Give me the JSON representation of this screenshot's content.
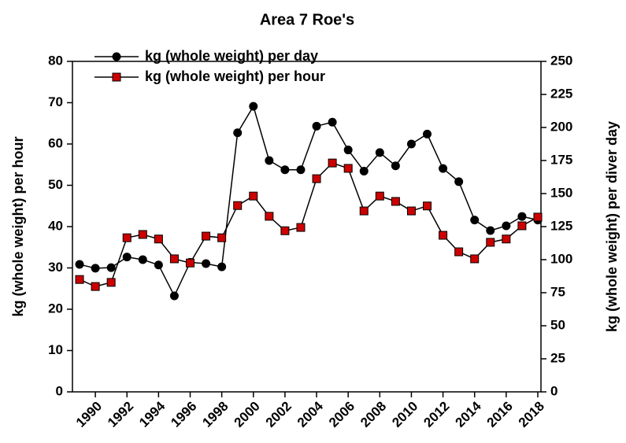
{
  "chart_data": {
    "type": "line",
    "title": "Area 7 Roe's",
    "x": [
      1989,
      1990,
      1991,
      1992,
      1993,
      1994,
      1995,
      1996,
      1997,
      1998,
      1999,
      2000,
      2001,
      2002,
      2003,
      2004,
      2005,
      2006,
      2007,
      2008,
      2009,
      2010,
      2011,
      2012,
      2013,
      2014,
      2015,
      2016,
      2017,
      2018
    ],
    "xlim": [
      1988.55,
      2018.2
    ],
    "xticks": [
      1990,
      1992,
      1994,
      1996,
      1998,
      2000,
      2002,
      2004,
      2006,
      2008,
      2010,
      2012,
      2014,
      2016,
      2018
    ],
    "ylabel": "kg (whole weight) per hour",
    "y2label": "kg (whole weight) per diver day",
    "ylim": [
      0,
      80
    ],
    "yticks": [
      0,
      10,
      20,
      30,
      40,
      50,
      60,
      70,
      80
    ],
    "y2lim": [
      0,
      250
    ],
    "y2ticks": [
      0,
      25,
      50,
      75,
      100,
      125,
      150,
      175,
      200,
      225,
      250
    ],
    "legend": "upper left",
    "series": [
      {
        "name": "kg (whole weight) per day",
        "color": "#000000",
        "marker": "circle",
        "axis": "y2",
        "values": [
          96.4,
          93.5,
          94,
          102,
          100,
          96,
          72.6,
          98,
          97,
          94.6,
          196,
          216,
          175,
          168,
          168,
          201,
          204,
          183,
          167,
          181,
          171,
          187.5,
          195,
          169,
          159,
          130,
          122,
          125.6,
          132.7,
          130
        ]
      },
      {
        "name": "kg (whole weight) per hour",
        "color": "#cc0000",
        "marker": "square",
        "values": [
          27.2,
          25.5,
          26.5,
          37.3,
          38.1,
          37,
          32.2,
          31.2,
          37.7,
          37.3,
          45.1,
          47.4,
          42.5,
          39,
          39.8,
          51.6,
          55.4,
          54.1,
          43.8,
          47.4,
          46.1,
          43.8,
          45,
          37.9,
          33.9,
          32.2,
          36.2,
          37,
          40.2,
          42.3
        ]
      }
    ]
  }
}
